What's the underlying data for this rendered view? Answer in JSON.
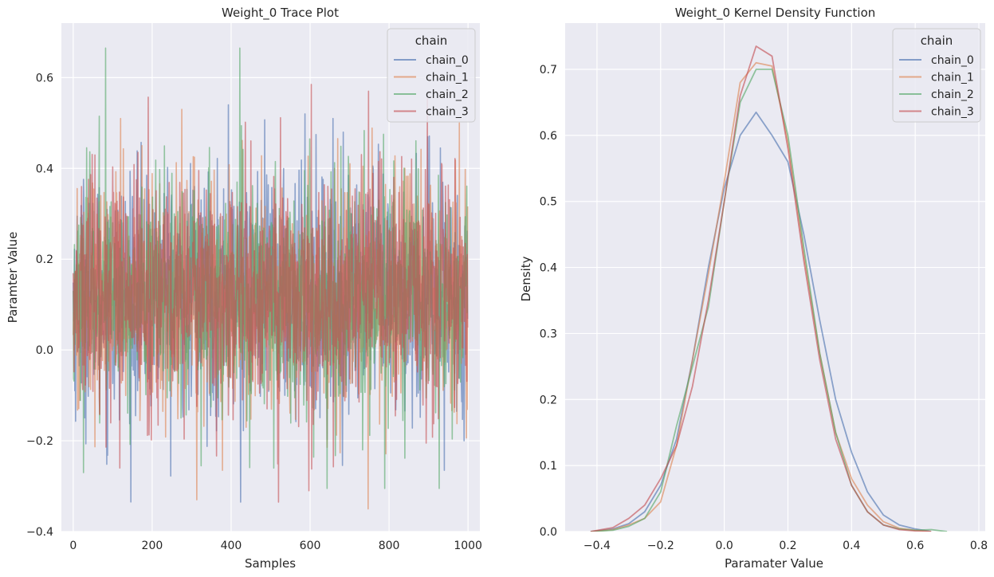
{
  "chart_data": [
    {
      "type": "line",
      "title": "Weight_0 Trace Plot",
      "xlabel": "Samples",
      "ylabel": "Paramter Value",
      "xlim": [
        -30,
        1030
      ],
      "ylim": [
        -0.4,
        0.72
      ],
      "xticks": [
        0,
        200,
        400,
        600,
        800,
        1000
      ],
      "yticks": [
        -0.4,
        -0.2,
        0.0,
        0.2,
        0.4,
        0.6
      ],
      "xtick_labels": [
        "0",
        "200",
        "400",
        "600",
        "800",
        "1000"
      ],
      "ytick_labels": [
        "−0.4",
        "−0.2",
        "0.0",
        "0.2",
        "0.4",
        "0.6"
      ],
      "grid": true,
      "legend": {
        "title": "chain",
        "placement": "top-right"
      },
      "n_samples": 1000,
      "series": [
        {
          "name": "chain_0",
          "color": "#4c72b0",
          "mean": 0.12,
          "sd": 0.13,
          "min": -0.335,
          "max": 0.54,
          "extremes": [
            [
              393,
              0.54
            ],
            [
              424,
              -0.335
            ],
            [
              587,
              0.52
            ],
            [
              940,
              -0.265
            ],
            [
              990,
              -0.2
            ]
          ]
        },
        {
          "name": "chain_1",
          "color": "#dd8452",
          "mean": 0.12,
          "sd": 0.125,
          "min": -0.35,
          "max": 0.53,
          "extremes": [
            [
              313,
              -0.33
            ],
            [
              275,
              0.53
            ],
            [
              747,
              -0.35
            ],
            [
              978,
              0.5
            ],
            [
              120,
              0.51
            ]
          ]
        },
        {
          "name": "chain_2",
          "color": "#55a868",
          "mean": 0.12,
          "sd": 0.125,
          "min": -0.305,
          "max": 0.665,
          "extremes": [
            [
              422,
              0.665
            ],
            [
              66,
              0.515
            ],
            [
              927,
              -0.305
            ],
            [
              324,
              -0.255
            ]
          ]
        },
        {
          "name": "chain_3",
          "color": "#c44e52",
          "mean": 0.12,
          "sd": 0.13,
          "min": -0.335,
          "max": 0.585,
          "extremes": [
            [
              520,
              0.585
            ],
            [
              748,
              0.57
            ],
            [
              520,
              -0.335
            ],
            [
              597,
              -0.31
            ],
            [
              118,
              -0.26
            ]
          ]
        }
      ]
    },
    {
      "type": "line",
      "title": "Weight_0 Kernel Density Function",
      "xlabel": "Paramater Value",
      "ylabel": "Density",
      "xlim": [
        -0.5,
        0.82
      ],
      "ylim": [
        0,
        0.77
      ],
      "xticks": [
        -0.4,
        -0.2,
        0.0,
        0.2,
        0.4,
        0.6,
        0.8
      ],
      "yticks": [
        0.0,
        0.1,
        0.2,
        0.3,
        0.4,
        0.5,
        0.6,
        0.7
      ],
      "xtick_labels": [
        "−0.4",
        "−0.2",
        "0.0",
        "0.2",
        "0.4",
        "0.6",
        "0.8"
      ],
      "ytick_labels": [
        "0.0",
        "0.1",
        "0.2",
        "0.3",
        "0.4",
        "0.5",
        "0.6",
        "0.7"
      ],
      "grid": true,
      "legend": {
        "title": "chain",
        "placement": "top-right"
      },
      "series": [
        {
          "name": "chain_0",
          "color": "#4c72b0",
          "x": [
            -0.42,
            -0.35,
            -0.3,
            -0.25,
            -0.2,
            -0.15,
            -0.1,
            -0.05,
            0.0,
            0.05,
            0.1,
            0.15,
            0.2,
            0.25,
            0.3,
            0.35,
            0.4,
            0.45,
            0.5,
            0.55,
            0.6,
            0.65
          ],
          "y": [
            0.0,
            0.004,
            0.012,
            0.03,
            0.07,
            0.14,
            0.26,
            0.4,
            0.52,
            0.6,
            0.635,
            0.6,
            0.56,
            0.45,
            0.32,
            0.2,
            0.12,
            0.06,
            0.025,
            0.01,
            0.004,
            0.0
          ]
        },
        {
          "name": "chain_1",
          "color": "#dd8452",
          "x": [
            -0.42,
            -0.35,
            -0.3,
            -0.25,
            -0.2,
            -0.15,
            -0.1,
            -0.05,
            0.0,
            0.05,
            0.1,
            0.15,
            0.2,
            0.25,
            0.3,
            0.35,
            0.4,
            0.45,
            0.5,
            0.55,
            0.6,
            0.65
          ],
          "y": [
            0.0,
            0.003,
            0.01,
            0.02,
            0.045,
            0.13,
            0.26,
            0.39,
            0.53,
            0.68,
            0.71,
            0.705,
            0.59,
            0.42,
            0.27,
            0.15,
            0.08,
            0.04,
            0.015,
            0.005,
            0.002,
            0.0
          ]
        },
        {
          "name": "chain_2",
          "color": "#55a868",
          "x": [
            -0.42,
            -0.35,
            -0.3,
            -0.25,
            -0.2,
            -0.15,
            -0.1,
            -0.05,
            0.0,
            0.05,
            0.1,
            0.15,
            0.2,
            0.25,
            0.3,
            0.35,
            0.4,
            0.45,
            0.5,
            0.55,
            0.6,
            0.65,
            0.7
          ],
          "y": [
            0.0,
            0.002,
            0.008,
            0.02,
            0.06,
            0.16,
            0.25,
            0.34,
            0.5,
            0.65,
            0.7,
            0.7,
            0.6,
            0.43,
            0.27,
            0.15,
            0.07,
            0.03,
            0.01,
            0.004,
            0.002,
            0.003,
            0.0
          ]
        },
        {
          "name": "chain_3",
          "color": "#c44e52",
          "x": [
            -0.42,
            -0.35,
            -0.3,
            -0.25,
            -0.2,
            -0.15,
            -0.1,
            -0.05,
            0.0,
            0.05,
            0.1,
            0.15,
            0.2,
            0.25,
            0.3,
            0.35,
            0.4,
            0.45,
            0.5,
            0.55,
            0.6,
            0.65
          ],
          "y": [
            0.0,
            0.006,
            0.02,
            0.04,
            0.08,
            0.13,
            0.22,
            0.35,
            0.5,
            0.66,
            0.735,
            0.72,
            0.58,
            0.41,
            0.26,
            0.14,
            0.07,
            0.03,
            0.01,
            0.003,
            0.001,
            0.0
          ]
        }
      ]
    }
  ]
}
